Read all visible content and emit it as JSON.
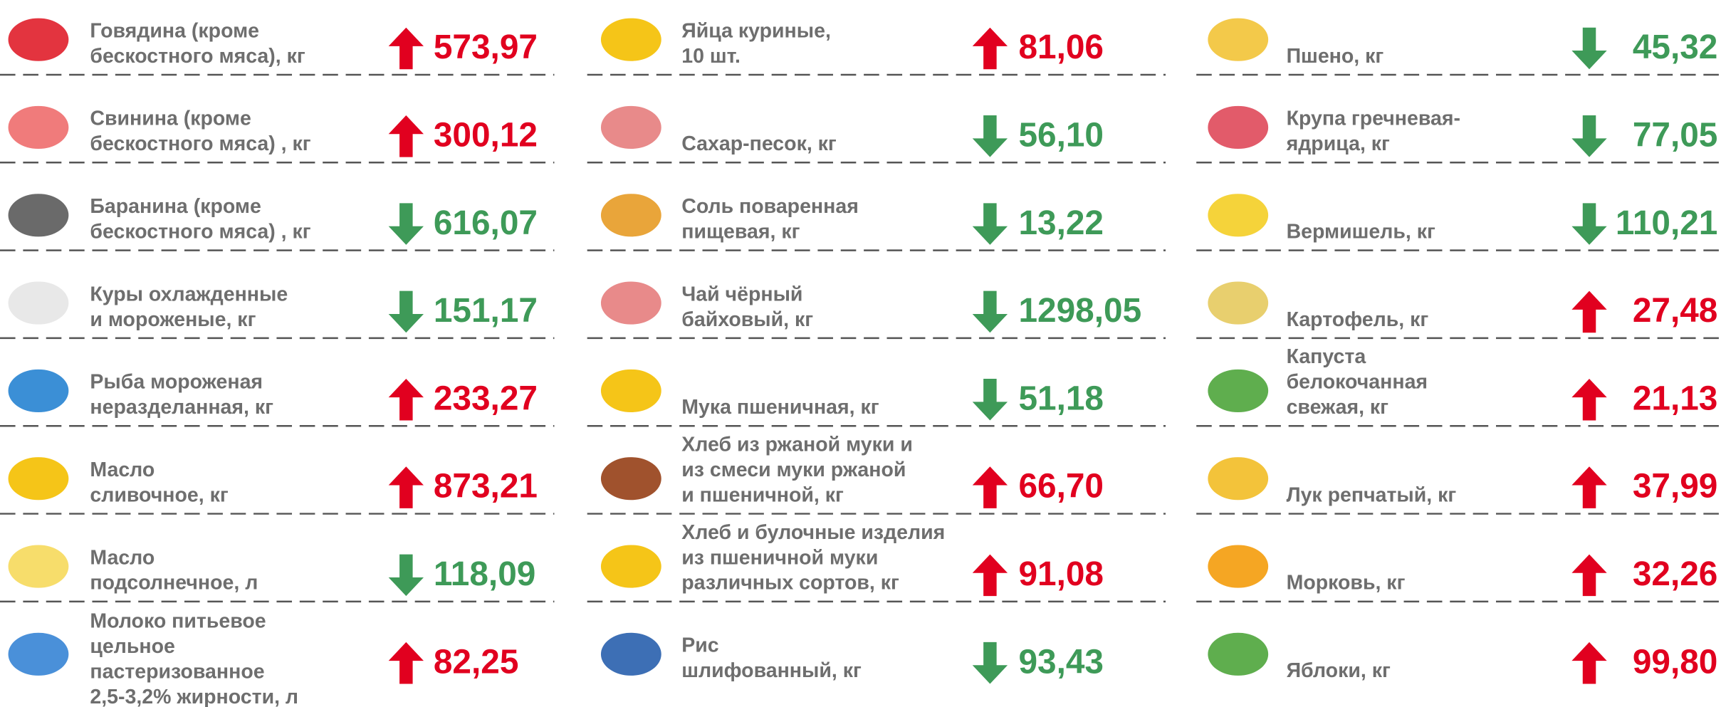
{
  "columns": [
    {
      "items": [
        {
          "label": [
            "Говядина (кроме",
            "бескостного мяса), кг"
          ],
          "trend": "up",
          "value": "573,97"
        },
        {
          "label": [
            "Свинина (кроме",
            "бескостного мяса) , кг"
          ],
          "trend": "up",
          "value": "300,12"
        },
        {
          "label": [
            "Баранина (кроме",
            "бескостного мяса) , кг"
          ],
          "trend": "down",
          "value": "616,07"
        },
        {
          "label": [
            "Куры охлажденные",
            "и мороженые, кг"
          ],
          "trend": "down",
          "value": "151,17"
        },
        {
          "label": [
            "Рыба мороженая",
            "неразделанная, кг"
          ],
          "trend": "up",
          "value": "233,27"
        },
        {
          "label": [
            "Масло",
            "сливочное, кг"
          ],
          "trend": "up",
          "value": "873,21"
        },
        {
          "label": [
            "Масло",
            "подсолнечное, л"
          ],
          "trend": "down",
          "value": "118,09"
        },
        {
          "label": [
            "Молоко питьевое",
            "цельное",
            "пастеризованное",
            "2,5-3,2% жирности, л"
          ],
          "trend": "up",
          "value": "82,25"
        }
      ]
    },
    {
      "items": [
        {
          "label": [
            "Яйца куриные,",
            "10 шт."
          ],
          "trend": "up",
          "value": "81,06"
        },
        {
          "label": [
            "Сахар-песок, кг"
          ],
          "trend": "down",
          "value": "56,10"
        },
        {
          "label": [
            "Соль поваренная",
            "пищевая, кг"
          ],
          "trend": "down",
          "value": "13,22"
        },
        {
          "label": [
            "Чай чёрный",
            "байховый, кг"
          ],
          "trend": "down",
          "value": "1298,05"
        },
        {
          "label": [
            "Мука пшеничная, кг"
          ],
          "trend": "down",
          "value": "51,18"
        },
        {
          "label": [
            "Хлеб из ржаной муки и",
            "из смеси муки ржаной",
            "и пшеничной, кг"
          ],
          "trend": "up",
          "value": "66,70"
        },
        {
          "label": [
            "Хлеб и булочные изделия",
            "из пшеничной муки",
            "различных сортов, кг"
          ],
          "trend": "up",
          "value": "91,08"
        },
        {
          "label": [
            "Рис",
            "шлифованный, кг"
          ],
          "trend": "down",
          "value": "93,43"
        }
      ]
    },
    {
      "items": [
        {
          "label": [
            "Пшено, кг"
          ],
          "trend": "down",
          "value": "45,32"
        },
        {
          "label": [
            "Крупа гречневая-",
            "ядрица, кг"
          ],
          "trend": "down",
          "value": "77,05"
        },
        {
          "label": [
            "Вермишель, кг"
          ],
          "trend": "down",
          "value": "110,21"
        },
        {
          "label": [
            "Картофель, кг"
          ],
          "trend": "up",
          "value": "27,48"
        },
        {
          "label": [
            "Капуста",
            "белокочанная",
            "свежая, кг"
          ],
          "trend": "up",
          "value": "21,13"
        },
        {
          "label": [
            "Лук репчатый, кг"
          ],
          "trend": "up",
          "value": "37,99"
        },
        {
          "label": [
            "Морковь, кг"
          ],
          "trend": "up",
          "value": "32,26"
        },
        {
          "label": [
            "Яблоки, кг"
          ],
          "trend": "up",
          "value": "99,80"
        }
      ]
    }
  ]
}
